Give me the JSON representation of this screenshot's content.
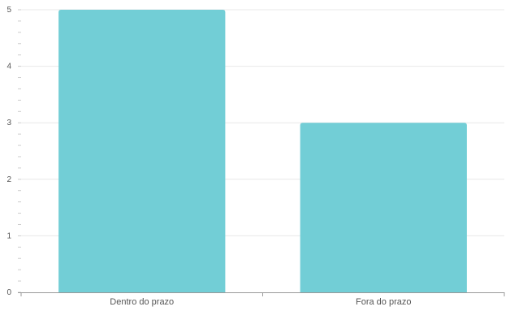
{
  "chart_data": {
    "type": "bar",
    "categories": [
      "Dentro do prazo",
      "Fora do prazo"
    ],
    "values": [
      5,
      3
    ],
    "title": "",
    "xlabel": "",
    "ylabel": "",
    "ylim": [
      0,
      5
    ],
    "yticks": [
      "0",
      "1",
      "2",
      "3",
      "4",
      "5"
    ],
    "grid": true,
    "legend": "none"
  },
  "colors": {
    "bar": "#72ced6",
    "grid": "#e8e8e8",
    "axis": "#999999",
    "text": "#555555"
  }
}
